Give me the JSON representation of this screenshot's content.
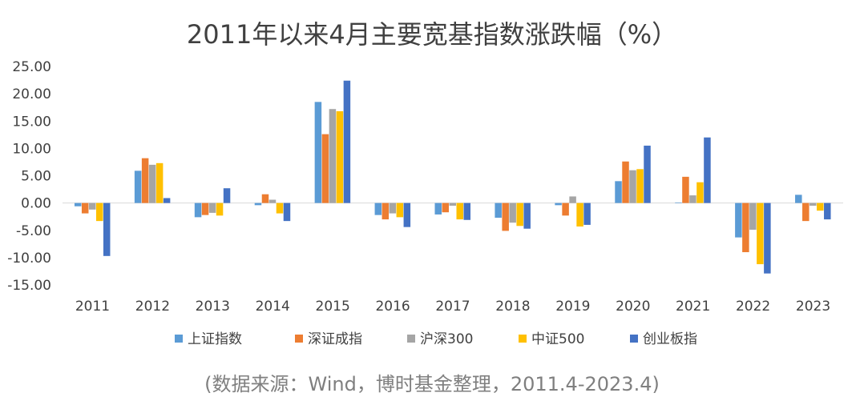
{
  "chart_data": {
    "type": "bar",
    "title": "2011年以来4月主要宽基指数涨跌幅（%）",
    "source": "(数据来源：Wind，博时基金整理，2011.4-2023.4)",
    "categories": [
      "2011",
      "2012",
      "2013",
      "2014",
      "2015",
      "2016",
      "2017",
      "2018",
      "2019",
      "2020",
      "2021",
      "2022",
      "2023"
    ],
    "series": [
      {
        "name": "上证指数",
        "color": "#5B9BD5",
        "values": [
          -0.6,
          5.9,
          -2.6,
          -0.4,
          18.5,
          -2.2,
          -2.1,
          -2.7,
          -0.4,
          4.0,
          0.1,
          -6.3,
          1.5
        ]
      },
      {
        "name": "深证成指",
        "color": "#ED7D31",
        "values": [
          -1.9,
          8.2,
          -2.2,
          1.6,
          12.6,
          -3.0,
          -1.7,
          -5.1,
          -2.3,
          7.6,
          4.8,
          -9.0,
          -3.3
        ]
      },
      {
        "name": "沪深300",
        "color": "#A5A5A5",
        "values": [
          -1.2,
          7.0,
          -1.8,
          0.6,
          17.2,
          -1.9,
          -0.5,
          -3.6,
          1.2,
          6.0,
          1.4,
          -4.9,
          -0.5
        ]
      },
      {
        "name": "中证500",
        "color": "#FFC000",
        "values": [
          -3.3,
          7.3,
          -2.3,
          -1.9,
          16.8,
          -2.6,
          -3.0,
          -4.2,
          -4.3,
          6.2,
          3.8,
          -11.2,
          -1.4
        ]
      },
      {
        "name": "创业板指",
        "color": "#4472C4",
        "values": [
          -9.7,
          0.9,
          2.7,
          -3.3,
          22.4,
          -4.4,
          -3.1,
          -4.7,
          -4.0,
          10.5,
          12.0,
          -12.9,
          -3.0
        ]
      }
    ],
    "ylim": [
      -15,
      25
    ],
    "yticks": [
      "25.00",
      "20.00",
      "15.00",
      "10.00",
      "5.00",
      "0.00",
      "-5.00",
      "-10.00",
      "-15.00"
    ],
    "legend_position": "bottom",
    "grid": false
  }
}
